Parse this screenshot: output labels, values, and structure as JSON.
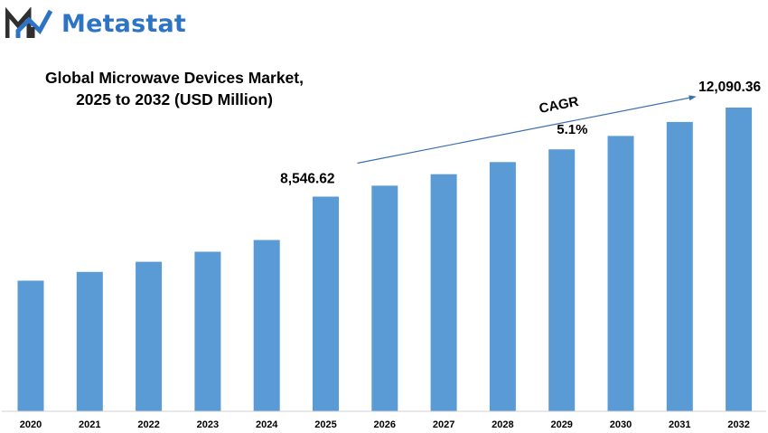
{
  "brand": {
    "name": "Metastat",
    "logo_icon": "metastat-m-logo-icon",
    "color": "#2e74c5"
  },
  "chart_data": {
    "type": "bar",
    "title": "Global Microwave Devices Market,",
    "subtitle": "2025 to 2032 (USD Million)",
    "categories": [
      "2020",
      "2021",
      "2022",
      "2023",
      "2024",
      "2025",
      "2026",
      "2027",
      "2028",
      "2029",
      "2030",
      "2031",
      "2032"
    ],
    "values": [
      5200,
      5550,
      5950,
      6350,
      6820,
      8546.62,
      8982,
      9440,
      9921,
      10427,
      10959,
      11518,
      12090.36
    ],
    "data_labels": [
      {
        "category": "2025",
        "text": "8,546.62"
      },
      {
        "category": "2032",
        "text": "12,090.36"
      }
    ],
    "annotation": {
      "label": "CAGR",
      "value": "5.1%",
      "from": "2025",
      "to": "2032"
    },
    "bar_color": "#5b9bd5",
    "ylim": [
      0,
      13000
    ],
    "xlabel": "",
    "ylabel": "",
    "grid": false,
    "legend": "none"
  }
}
